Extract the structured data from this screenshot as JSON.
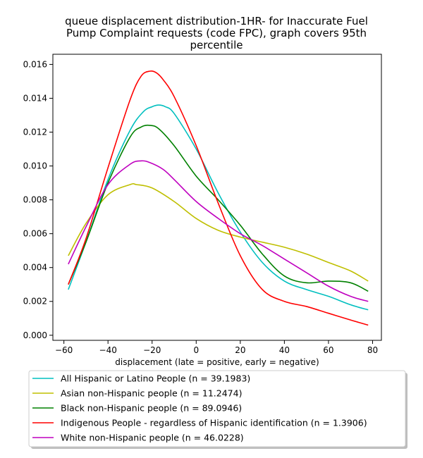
{
  "chart_data": {
    "type": "line",
    "title_lines": [
      "queue displacement distribution-1HR-  for Inaccurate Fuel",
      "Pump Complaint  requests (code FPC), graph covers 95th",
      "percentile"
    ],
    "xlabel": "displacement (late = positive, early = negative)",
    "ylabel": "",
    "xlim": [
      -65,
      84
    ],
    "ylim": [
      -0.0003,
      0.0166
    ],
    "xticks": [
      -60,
      -40,
      -20,
      0,
      20,
      40,
      60,
      80
    ],
    "xtick_labels": [
      "−60",
      "−40",
      "−20",
      "0",
      "20",
      "40",
      "60",
      "80"
    ],
    "yticks": [
      0.0,
      0.002,
      0.004,
      0.006,
      0.008,
      0.01,
      0.012,
      0.014,
      0.016
    ],
    "ytick_labels": [
      "0.000",
      "0.002",
      "0.004",
      "0.006",
      "0.008",
      "0.010",
      "0.012",
      "0.014",
      "0.016"
    ],
    "grid": false,
    "legend_position": "below plot",
    "series": [
      {
        "name": "All Hispanic or Latino People (n = 39.1983)",
        "color": "#00bfbf",
        "x": [
          -58,
          -50,
          -40,
          -30,
          -24,
          -20,
          -17,
          -14,
          -10,
          0,
          10,
          20,
          30,
          40,
          50,
          60,
          70,
          78
        ],
        "y": [
          0.0027,
          0.0055,
          0.0092,
          0.0121,
          0.0132,
          0.0135,
          0.0136,
          0.0135,
          0.0131,
          0.011,
          0.0084,
          0.0061,
          0.0043,
          0.0032,
          0.0027,
          0.0023,
          0.0018,
          0.0015
        ]
      },
      {
        "name": "Asian non-Hispanic people (n = 11.2474)",
        "color": "#bfbf00",
        "x": [
          -58,
          -50,
          -40,
          -30,
          -27,
          -20,
          -10,
          0,
          10,
          20,
          30,
          40,
          50,
          60,
          70,
          78
        ],
        "y": [
          0.0047,
          0.0066,
          0.0083,
          0.0089,
          0.0089,
          0.0087,
          0.0079,
          0.0069,
          0.0062,
          0.0058,
          0.0055,
          0.0052,
          0.0048,
          0.0043,
          0.0038,
          0.0032
        ]
      },
      {
        "name": "Black non-Hispanic people (n = 89.0946)",
        "color": "#008000",
        "x": [
          -58,
          -50,
          -40,
          -30,
          -25,
          -21,
          -17,
          -10,
          0,
          10,
          20,
          30,
          40,
          50,
          60,
          70,
          78
        ],
        "y": [
          0.003,
          0.0055,
          0.009,
          0.0117,
          0.0123,
          0.0124,
          0.0122,
          0.0112,
          0.0094,
          0.008,
          0.0065,
          0.0048,
          0.0035,
          0.0031,
          0.0032,
          0.0031,
          0.0026
        ]
      },
      {
        "name": "Indigenous People - regardless of Hispanic identification (n = 1.3906)",
        "color": "#ff0000",
        "x": [
          -58,
          -50,
          -40,
          -30,
          -25,
          -21,
          -18,
          -15,
          -10,
          0,
          10,
          20,
          30,
          40,
          50,
          60,
          70,
          78
        ],
        "y": [
          0.003,
          0.0057,
          0.0099,
          0.0139,
          0.0153,
          0.0156,
          0.0155,
          0.0151,
          0.0141,
          0.0112,
          0.0078,
          0.0047,
          0.0027,
          0.002,
          0.0017,
          0.0013,
          0.0009,
          0.0006
        ]
      },
      {
        "name": "White non-Hispanic people (n = 46.0228)",
        "color": "#bf00bf",
        "x": [
          -58,
          -50,
          -40,
          -30,
          -25,
          -21,
          -15,
          -10,
          0,
          10,
          20,
          30,
          40,
          50,
          60,
          70,
          78
        ],
        "y": [
          0.0042,
          0.0064,
          0.0089,
          0.0101,
          0.0103,
          0.0102,
          0.0098,
          0.0092,
          0.0079,
          0.0069,
          0.006,
          0.0053,
          0.0045,
          0.0037,
          0.0029,
          0.0023,
          0.002
        ]
      }
    ]
  }
}
